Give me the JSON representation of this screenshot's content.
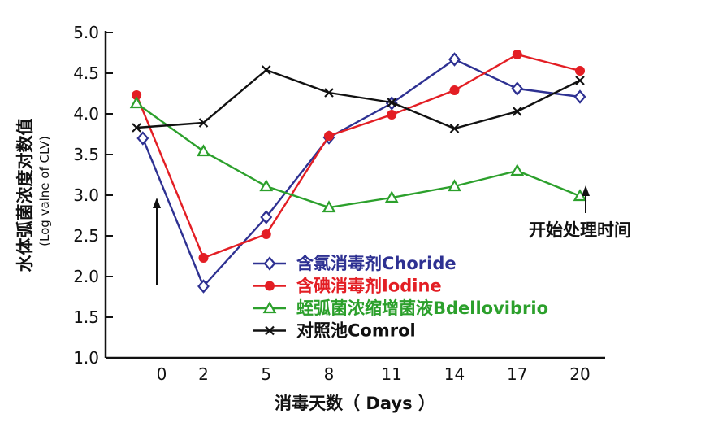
{
  "chart_data": {
    "type": "line",
    "xlabel": "消毒天数（ Days ）",
    "ylabel": "水体弧菌浓度对数值",
    "ylabel_sub": "(Log valne of CLV)",
    "x_ticks": [
      "0",
      "2",
      "5",
      "8",
      "11",
      "14",
      "17",
      "20"
    ],
    "y_ticks": [
      "1.0",
      "1.5",
      "2.0",
      "2.5",
      "3.0",
      "3.5",
      "4.0",
      "4.5",
      "5.0"
    ],
    "ylim": [
      1.0,
      5.0
    ],
    "grid": false,
    "legend_position": "center",
    "annotation": "开始处理时间",
    "series": [
      {
        "name": "含氯消毒剂Choride",
        "color": "#2e3192",
        "marker": "diamond",
        "x": [
          -0.9,
          2,
          5,
          8,
          11,
          14,
          17,
          20
        ],
        "values": [
          3.7,
          1.88,
          2.73,
          3.71,
          4.13,
          4.67,
          4.31,
          4.21
        ]
      },
      {
        "name": "含碘消毒剂Iodine",
        "color": "#e31e24",
        "marker": "circle",
        "x": [
          -1.2,
          2,
          5,
          8,
          11,
          14,
          17,
          20
        ],
        "values": [
          4.23,
          2.23,
          2.52,
          3.73,
          3.99,
          4.29,
          4.73,
          4.53
        ]
      },
      {
        "name": "蛭弧菌浓缩增菌液Bdellovibrio",
        "color": "#2ca02c",
        "marker": "triangle",
        "x": [
          -1.2,
          2,
          5,
          8,
          11,
          14,
          17,
          20
        ],
        "values": [
          4.13,
          3.54,
          3.11,
          2.85,
          2.97,
          3.11,
          3.3,
          2.99
        ]
      },
      {
        "name": "对照池Comrol",
        "color": "#111111",
        "marker": "x",
        "x": [
          -1.2,
          2,
          5,
          8,
          11,
          14,
          17,
          20
        ],
        "values": [
          3.83,
          3.89,
          4.54,
          4.26,
          4.14,
          3.82,
          4.03,
          4.41
        ]
      }
    ]
  }
}
